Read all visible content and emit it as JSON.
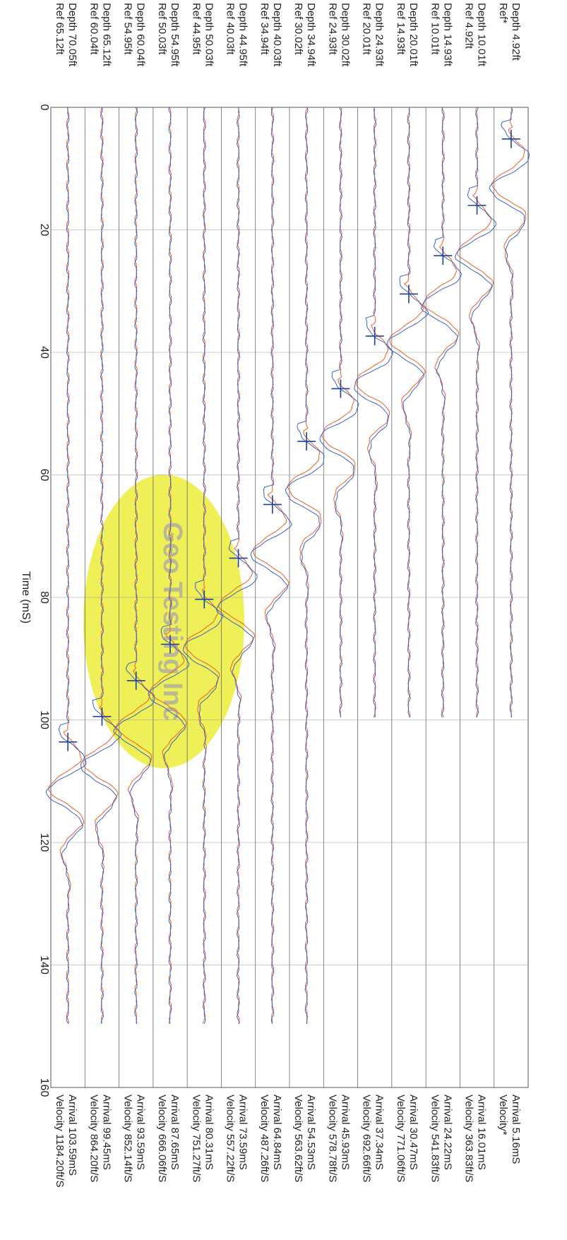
{
  "chart_data": {
    "type": "line",
    "orientation": "rotated-90",
    "title": "",
    "xlabel": "Time (mS)",
    "ylabel": "",
    "xlim": [
      0,
      160
    ],
    "x_ticks": [
      "0",
      "20",
      "40",
      "60",
      "80",
      "100",
      "120",
      "140",
      "160"
    ],
    "grid": true,
    "legend": "none",
    "watermark": "Geo Testing Inc",
    "colors": {
      "channel_a": "#3b63c9",
      "channel_b": "#e8602a",
      "marker": "#1f3f9e",
      "watermark": "#ecec3a"
    },
    "traces": [
      {
        "depth_label": "Depth 4.92ft",
        "ref_label": "Ref*",
        "arrival_label": "Arrival 5.16mS",
        "velocity_label": "Velocity*",
        "arrival_ms": 5.16,
        "end_ms": 100
      },
      {
        "depth_label": "Depth 10.01ft",
        "ref_label": "Ref 4.92ft",
        "arrival_label": "Arrival 16.01mS",
        "velocity_label": "Velocity 363.83ft/S",
        "arrival_ms": 16.01,
        "end_ms": 100
      },
      {
        "depth_label": "Depth 14.93ft",
        "ref_label": "Ref 10.01ft",
        "arrival_label": "Arrival 24.22mS",
        "velocity_label": "Velocity 541.83ft/S",
        "arrival_ms": 24.22,
        "end_ms": 100
      },
      {
        "depth_label": "Depth 20.01ft",
        "ref_label": "Ref 14.93ft",
        "arrival_label": "Arrival 30.47mS",
        "velocity_label": "Velocity 771.06ft/S",
        "arrival_ms": 30.47,
        "end_ms": 100
      },
      {
        "depth_label": "Depth 24.93ft",
        "ref_label": "Ref 20.01ft",
        "arrival_label": "Arrival 37.34mS",
        "velocity_label": "Velocity 692.66ft/S",
        "arrival_ms": 37.34,
        "end_ms": 100
      },
      {
        "depth_label": "Depth 30.02ft",
        "ref_label": "Ref 24.93ft",
        "arrival_label": "Arrival 45.93mS",
        "velocity_label": "Velocity 578.78ft/S",
        "arrival_ms": 45.93,
        "end_ms": 100
      },
      {
        "depth_label": "Depth 34.94ft",
        "ref_label": "Ref 30.02ft",
        "arrival_label": "Arrival 54.53mS",
        "velocity_label": "Velocity 563.62ft/S",
        "arrival_ms": 54.53,
        "end_ms": 150
      },
      {
        "depth_label": "Depth 40.03ft",
        "ref_label": "Ref 34.94ft",
        "arrival_label": "Arrival 64.84mS",
        "velocity_label": "Velocity 487.26ft/S",
        "arrival_ms": 64.84,
        "end_ms": 150
      },
      {
        "depth_label": "Depth 44.95ft",
        "ref_label": "Ref 40.03ft",
        "arrival_label": "Arrival 73.59mS",
        "velocity_label": "Velocity 557.22ft/S",
        "arrival_ms": 73.59,
        "end_ms": 150
      },
      {
        "depth_label": "Depth 50.03ft",
        "ref_label": "Ref 44.95ft",
        "arrival_label": "Arrival 80.31mS",
        "velocity_label": "Velocity 751.27ft/S",
        "arrival_ms": 80.31,
        "end_ms": 150
      },
      {
        "depth_label": "Depth 54.95ft",
        "ref_label": "Ref 50.03ft",
        "arrival_label": "Arrival 87.65mS",
        "velocity_label": "Velocity 666.06ft/S",
        "arrival_ms": 87.65,
        "end_ms": 150
      },
      {
        "depth_label": "Depth 60.04ft",
        "ref_label": "Ref 54.95ft",
        "arrival_label": "Arrival 93.59mS",
        "velocity_label": "Velocity 852.14ft/S",
        "arrival_ms": 93.59,
        "end_ms": 150
      },
      {
        "depth_label": "Depth 65.12ft",
        "ref_label": "Ref 60.04ft",
        "arrival_label": "Arrival 99.45mS",
        "velocity_label": "Velocity 864.20ft/S",
        "arrival_ms": 99.45,
        "end_ms": 150
      },
      {
        "depth_label": "Depth 70.05ft",
        "ref_label": "Ref 65.12ft",
        "arrival_label": "Arrival 103.59mS",
        "velocity_label": "Velocity 1184.20ft/S",
        "arrival_ms": 103.59,
        "end_ms": 150
      }
    ]
  }
}
